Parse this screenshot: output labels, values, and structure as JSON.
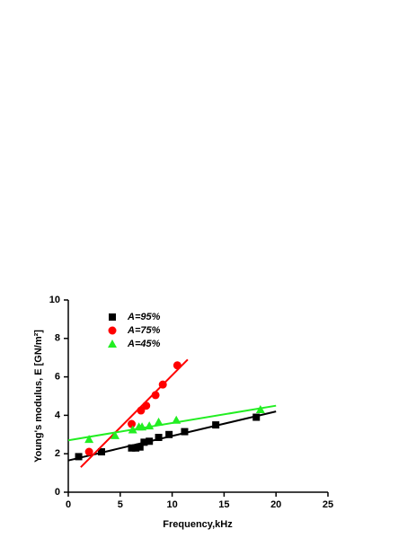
{
  "chart_data": {
    "type": "scatter",
    "xlabel": "Frequency,kHz",
    "ylabel": "Young's modulus, E [GN/m²]",
    "xlim": [
      0,
      25
    ],
    "xticks": [
      0,
      5,
      10,
      15,
      20,
      25
    ],
    "ylim": [
      0,
      10
    ],
    "yticks": [
      0,
      2,
      4,
      6,
      8,
      10
    ],
    "legend": "upper left",
    "series": [
      {
        "name": "A=95%",
        "color": "#000000",
        "marker": "square",
        "x": [
          1,
          3.2,
          6.1,
          6.5,
          6.9,
          7.3,
          7.8,
          8.7,
          9.7,
          11.2,
          14.2,
          18.1
        ],
        "values": [
          1.85,
          2.1,
          2.3,
          2.3,
          2.35,
          2.6,
          2.65,
          2.85,
          3.0,
          3.15,
          3.5,
          3.9
        ],
        "fit": {
          "x": [
            0,
            20
          ],
          "values": [
            1.65,
            4.2
          ]
        }
      },
      {
        "name": "A=75%",
        "color": "#ff0000",
        "marker": "circle",
        "x": [
          2,
          6.1,
          7.0,
          7.5,
          8.4,
          9.1,
          10.5
        ],
        "values": [
          2.1,
          3.55,
          4.25,
          4.5,
          5.05,
          5.6,
          6.6
        ],
        "fit": {
          "x": [
            1.2,
            11.5
          ],
          "values": [
            1.3,
            6.9
          ]
        }
      },
      {
        "name": "A=45%",
        "color": "#22ee22",
        "marker": "triangle",
        "x": [
          2,
          4.5,
          6.2,
          6.8,
          7.1,
          7.8,
          8.7,
          10.4,
          18.5
        ],
        "values": [
          2.75,
          2.95,
          3.25,
          3.4,
          3.4,
          3.45,
          3.65,
          3.75,
          4.3
        ],
        "fit": {
          "x": [
            0,
            20
          ],
          "values": [
            2.7,
            4.5
          ]
        }
      }
    ]
  }
}
